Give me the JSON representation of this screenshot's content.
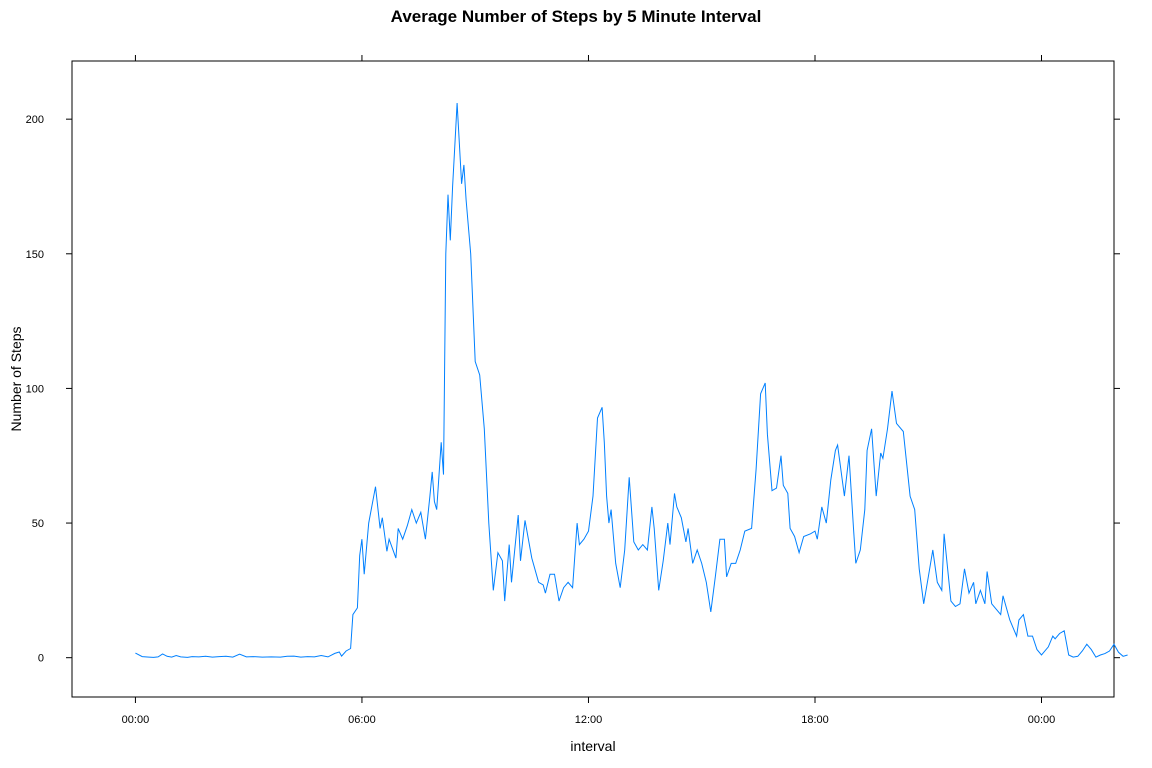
{
  "chart_data": {
    "type": "line",
    "title": "Average Number of Steps by 5 Minute Interval",
    "xlabel": "interval",
    "ylabel": "Number of Steps",
    "x_unit": "hours since midnight",
    "xlim": [
      -2.8,
      43.2
    ],
    "ylim": [
      -14.6,
      221.6
    ],
    "xticks": [
      {
        "value": 0,
        "label": "00:00"
      },
      {
        "value": 10,
        "label": "06:00"
      },
      {
        "value": 20,
        "label": "12:00"
      },
      {
        "value": 30,
        "label": "18:00"
      },
      {
        "value": 40,
        "label": "00:00"
      }
    ],
    "yticks": [
      0,
      50,
      100,
      150,
      200
    ],
    "grid": false,
    "series": [
      {
        "color": "#0080ff",
        "points": [
          [
            0.0,
            1.7
          ],
          [
            0.3,
            0.4
          ],
          [
            0.6,
            0.2
          ],
          [
            0.8,
            0.1
          ],
          [
            1.0,
            0.3
          ],
          [
            1.2,
            1.4
          ],
          [
            1.4,
            0.5
          ],
          [
            1.6,
            0.2
          ],
          [
            1.8,
            0.8
          ],
          [
            2.0,
            0.3
          ],
          [
            2.3,
            0.1
          ],
          [
            2.5,
            0.4
          ],
          [
            2.8,
            0.3
          ],
          [
            3.1,
            0.5
          ],
          [
            3.4,
            0.2
          ],
          [
            3.7,
            0.4
          ],
          [
            4.0,
            0.5
          ],
          [
            4.3,
            0.2
          ],
          [
            4.6,
            1.3
          ],
          [
            4.9,
            0.3
          ],
          [
            5.2,
            0.4
          ],
          [
            5.6,
            0.2
          ],
          [
            6.0,
            0.3
          ],
          [
            6.4,
            0.2
          ],
          [
            6.7,
            0.5
          ],
          [
            7.0,
            0.6
          ],
          [
            7.3,
            0.2
          ],
          [
            7.6,
            0.4
          ],
          [
            7.9,
            0.3
          ],
          [
            8.2,
            0.8
          ],
          [
            8.5,
            0.3
          ],
          [
            8.8,
            1.6
          ],
          [
            9.0,
            2.1
          ],
          [
            9.1,
            0.6
          ],
          [
            9.3,
            2.5
          ],
          [
            9.5,
            3.4
          ],
          [
            9.6,
            16.0
          ],
          [
            9.8,
            18.5
          ],
          [
            9.9,
            38.0
          ],
          [
            10.0,
            44.0
          ],
          [
            10.1,
            31.0
          ],
          [
            10.3,
            50.0
          ],
          [
            10.6,
            63.5
          ],
          [
            10.8,
            48.0
          ],
          [
            10.9,
            52.0
          ],
          [
            11.1,
            39.5
          ],
          [
            11.2,
            44.0
          ],
          [
            11.5,
            37.0
          ],
          [
            11.6,
            48.0
          ],
          [
            11.8,
            44.0
          ],
          [
            12.0,
            49.0
          ],
          [
            12.2,
            55.0
          ],
          [
            12.4,
            50.0
          ],
          [
            12.6,
            54.0
          ],
          [
            12.8,
            44.0
          ],
          [
            13.0,
            60.0
          ],
          [
            13.1,
            69.0
          ],
          [
            13.2,
            58.0
          ],
          [
            13.3,
            55.0
          ],
          [
            13.5,
            80.0
          ],
          [
            13.6,
            68.0
          ],
          [
            13.7,
            150.0
          ],
          [
            13.8,
            172.0
          ],
          [
            13.9,
            155.0
          ],
          [
            14.0,
            175.0
          ],
          [
            14.1,
            190.0
          ],
          [
            14.2,
            206.0
          ],
          [
            14.4,
            176.0
          ],
          [
            14.5,
            183.0
          ],
          [
            14.6,
            170.0
          ],
          [
            14.8,
            150.0
          ],
          [
            15.0,
            110.0
          ],
          [
            15.2,
            105.0
          ],
          [
            15.4,
            85.0
          ],
          [
            15.6,
            50.0
          ],
          [
            15.8,
            25.0
          ],
          [
            16.0,
            39.0
          ],
          [
            16.2,
            36.0
          ],
          [
            16.3,
            21.0
          ],
          [
            16.5,
            42.0
          ],
          [
            16.6,
            28.0
          ],
          [
            16.9,
            53.0
          ],
          [
            17.0,
            36.0
          ],
          [
            17.2,
            51.0
          ],
          [
            17.5,
            37.0
          ],
          [
            17.8,
            28.0
          ],
          [
            18.0,
            27.0
          ],
          [
            18.1,
            24.0
          ],
          [
            18.3,
            31.0
          ],
          [
            18.5,
            31.0
          ],
          [
            18.7,
            21.0
          ],
          [
            18.9,
            26.0
          ],
          [
            19.1,
            28.0
          ],
          [
            19.3,
            26.0
          ],
          [
            19.5,
            50.0
          ],
          [
            19.6,
            42.0
          ],
          [
            19.8,
            44.0
          ],
          [
            20.0,
            47.0
          ],
          [
            20.2,
            60.0
          ],
          [
            20.4,
            89.0
          ],
          [
            20.6,
            93.0
          ],
          [
            20.7,
            80.0
          ],
          [
            20.8,
            60.0
          ],
          [
            20.9,
            50.0
          ],
          [
            21.0,
            55.0
          ],
          [
            21.2,
            35.0
          ],
          [
            21.4,
            26.0
          ],
          [
            21.6,
            40.0
          ],
          [
            21.8,
            67.0
          ],
          [
            22.0,
            43.0
          ],
          [
            22.2,
            40.0
          ],
          [
            22.4,
            42.0
          ],
          [
            22.6,
            40.0
          ],
          [
            22.8,
            56.0
          ],
          [
            22.9,
            48.0
          ],
          [
            23.1,
            25.0
          ],
          [
            23.3,
            36.0
          ],
          [
            23.5,
            50.0
          ],
          [
            23.6,
            42.0
          ],
          [
            23.8,
            61.0
          ],
          [
            23.9,
            56.0
          ],
          [
            24.1,
            52.0
          ],
          [
            24.3,
            43.0
          ],
          [
            24.4,
            48.0
          ],
          [
            24.6,
            35.0
          ],
          [
            24.8,
            40.0
          ],
          [
            25.0,
            35.0
          ],
          [
            25.2,
            28.0
          ],
          [
            25.4,
            17.0
          ],
          [
            25.6,
            30.0
          ],
          [
            25.8,
            44.0
          ],
          [
            26.0,
            44.0
          ],
          [
            26.1,
            30.0
          ],
          [
            26.3,
            35.0
          ],
          [
            26.5,
            35.0
          ],
          [
            26.7,
            40.0
          ],
          [
            26.9,
            47.0
          ],
          [
            27.2,
            48.0
          ],
          [
            27.4,
            70.0
          ],
          [
            27.6,
            98.0
          ],
          [
            27.8,
            102.0
          ],
          [
            27.9,
            83.0
          ],
          [
            28.1,
            62.0
          ],
          [
            28.3,
            63.0
          ],
          [
            28.5,
            75.0
          ],
          [
            28.6,
            64.0
          ],
          [
            28.8,
            61.0
          ],
          [
            28.9,
            48.0
          ],
          [
            29.1,
            45.0
          ],
          [
            29.3,
            39.0
          ],
          [
            29.5,
            45.0
          ],
          [
            29.8,
            46.0
          ],
          [
            30.0,
            47.0
          ],
          [
            30.1,
            44.0
          ],
          [
            30.3,
            56.0
          ],
          [
            30.5,
            50.0
          ],
          [
            30.7,
            66.0
          ],
          [
            30.9,
            77.0
          ],
          [
            31.0,
            79.0
          ],
          [
            31.3,
            60.0
          ],
          [
            31.5,
            75.0
          ],
          [
            31.7,
            48.0
          ],
          [
            31.8,
            35.0
          ],
          [
            32.0,
            40.0
          ],
          [
            32.2,
            55.0
          ],
          [
            32.3,
            77.0
          ],
          [
            32.5,
            85.0
          ],
          [
            32.7,
            60.0
          ],
          [
            32.9,
            76.0
          ],
          [
            33.0,
            74.0
          ],
          [
            33.2,
            85.0
          ],
          [
            33.4,
            99.0
          ],
          [
            33.6,
            87.0
          ],
          [
            33.9,
            84.0
          ],
          [
            34.2,
            60.0
          ],
          [
            34.4,
            55.0
          ],
          [
            34.6,
            33.0
          ],
          [
            34.8,
            20.0
          ],
          [
            35.0,
            30.0
          ],
          [
            35.2,
            40.0
          ],
          [
            35.4,
            28.0
          ],
          [
            35.6,
            25.0
          ],
          [
            35.7,
            46.0
          ],
          [
            36.0,
            21.0
          ],
          [
            36.2,
            19.0
          ],
          [
            36.4,
            20.0
          ],
          [
            36.6,
            33.0
          ],
          [
            36.8,
            24.0
          ],
          [
            37.0,
            28.0
          ],
          [
            37.1,
            20.0
          ],
          [
            37.3,
            25.0
          ],
          [
            37.5,
            20.0
          ],
          [
            37.6,
            32.0
          ],
          [
            37.8,
            20.0
          ],
          [
            38.0,
            18.0
          ],
          [
            38.2,
            16.0
          ],
          [
            38.3,
            23.0
          ],
          [
            38.6,
            14.0
          ],
          [
            38.9,
            8.0
          ],
          [
            39.0,
            14.0
          ],
          [
            39.2,
            16.0
          ],
          [
            39.4,
            8.0
          ],
          [
            39.6,
            8.0
          ],
          [
            39.8,
            3.0
          ],
          [
            40.0,
            1.0
          ],
          [
            40.3,
            4.0
          ],
          [
            40.5,
            8.0
          ],
          [
            40.6,
            7.0
          ],
          [
            40.8,
            9.0
          ],
          [
            41.0,
            10.0
          ],
          [
            41.2,
            1.0
          ],
          [
            41.4,
            0.2
          ],
          [
            41.6,
            0.5
          ],
          [
            41.8,
            2.5
          ],
          [
            42.0,
            5.0
          ],
          [
            42.2,
            3.0
          ],
          [
            42.4,
            0.2
          ],
          [
            42.6,
            1.0
          ],
          [
            42.8,
            1.5
          ],
          [
            43.0,
            2.5
          ],
          [
            43.2,
            5.0
          ],
          [
            43.4,
            2.0
          ],
          [
            43.6,
            0.5
          ],
          [
            43.8,
            1.0
          ]
        ]
      }
    ]
  }
}
